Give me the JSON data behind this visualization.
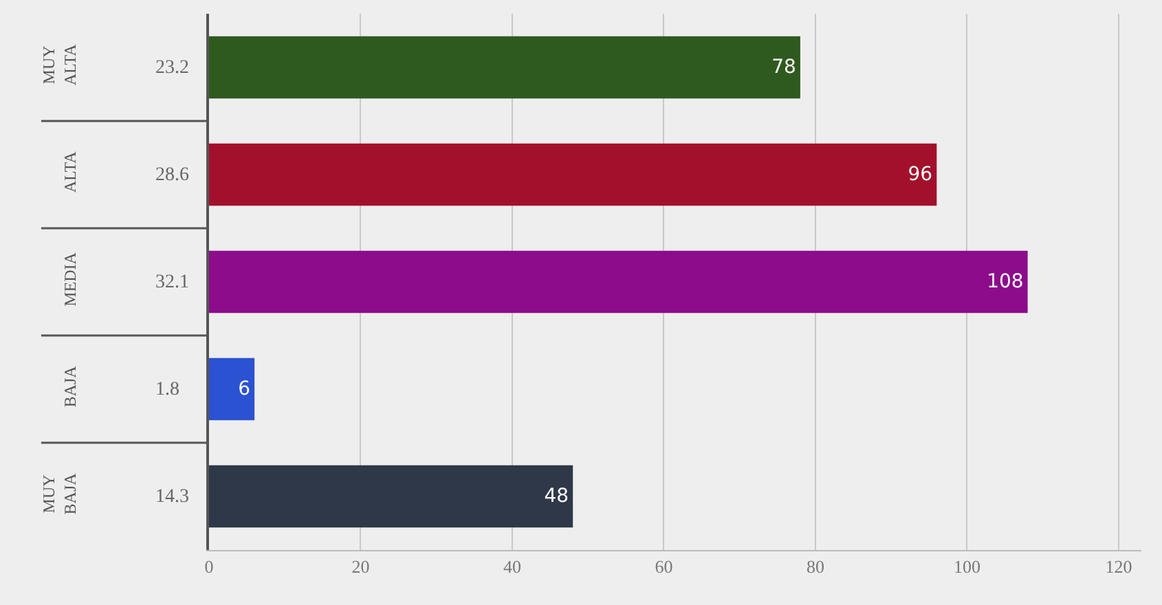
{
  "chart_data": {
    "type": "bar",
    "orientation": "horizontal",
    "categories": [
      "MUY ALTA",
      "ALTA",
      "MEDIA",
      "BAJA",
      "MUY BAJA"
    ],
    "values": [
      78,
      96,
      108,
      6,
      48
    ],
    "colors": [
      "#2f5a1e",
      "#a3102c",
      "#8c0c8c",
      "#2b52d2",
      "#2e3848"
    ],
    "data_labels": true,
    "annotations": [
      "23.2",
      "28.6",
      "32.1",
      "1.8",
      "14.3"
    ],
    "xlim": [
      0,
      123
    ],
    "xticks": [
      0,
      20,
      40,
      60,
      80,
      100,
      120
    ],
    "grid": "x"
  }
}
